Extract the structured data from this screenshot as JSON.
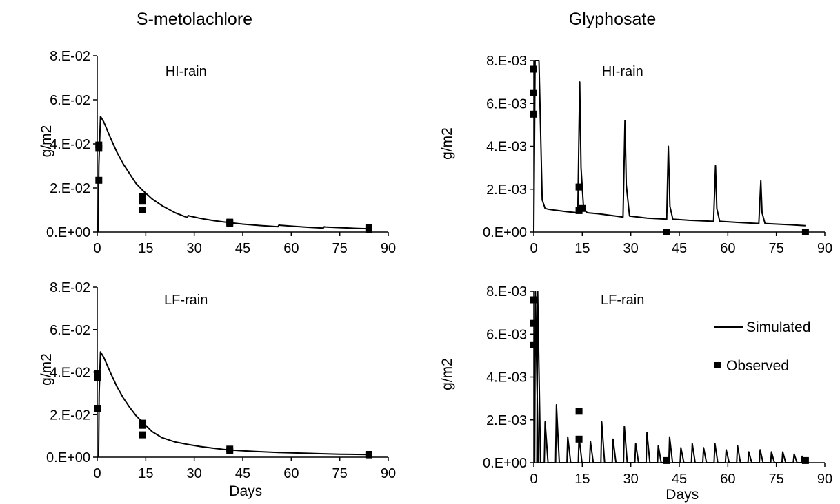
{
  "figure": {
    "col_titles": [
      "S-metolachlore",
      "Glyphosate"
    ],
    "x_label": "Days",
    "legend": {
      "simulated": "Simulated",
      "observed": "Observed"
    }
  },
  "chart_data": [
    {
      "type": "line",
      "column_title": "S-metolachlore",
      "subtitle": "HI-rain",
      "ylabel": "g/m2",
      "xlabel": "",
      "xlim": [
        0,
        90
      ],
      "ylim": [
        0,
        0.08
      ],
      "xticks": [
        "0",
        "15",
        "30",
        "45",
        "60",
        "75",
        "90"
      ],
      "yticks": [
        "0.E+00",
        "2.E-02",
        "4.E-02",
        "6.E-02",
        "8.E-02"
      ],
      "grid": false,
      "simulated": {
        "x": [
          0.3,
          0.5,
          1,
          2,
          4,
          6,
          8,
          10,
          12,
          14,
          17,
          20,
          24,
          27.9,
          28.1,
          28.5,
          32,
          36,
          40,
          45,
          50,
          55.9,
          56.2,
          56.5,
          60,
          65,
          69.9,
          70.2,
          70.5,
          75,
          80,
          84
        ],
        "y": [
          0,
          0.03,
          0.0525,
          0.05,
          0.043,
          0.0365,
          0.031,
          0.0265,
          0.022,
          0.019,
          0.015,
          0.012,
          0.0088,
          0.0066,
          0.0075,
          0.0073,
          0.0062,
          0.0052,
          0.0044,
          0.0036,
          0.003,
          0.0024,
          0.0032,
          0.0031,
          0.0027,
          0.0022,
          0.0018,
          0.0024,
          0.0023,
          0.002,
          0.0017,
          0.0015
        ]
      },
      "observed": {
        "x": [
          0.5,
          0.5,
          0.5,
          14,
          14,
          14,
          41,
          41,
          84,
          84
        ],
        "y": [
          0.0395,
          0.038,
          0.0235,
          0.016,
          0.014,
          0.01,
          0.0045,
          0.0038,
          0.0022,
          0.0012
        ]
      }
    },
    {
      "type": "line",
      "column_title": "Glyphosate",
      "subtitle": "HI-rain",
      "ylabel": "g/m2",
      "xlabel": "",
      "xlim": [
        0,
        90
      ],
      "ylim": [
        0,
        0.008
      ],
      "xticks": [
        "0",
        "15",
        "30",
        "45",
        "60",
        "75",
        "90"
      ],
      "yticks": [
        "0.E+00",
        "2.E-03",
        "4.E-03",
        "6.E-03",
        "8.E-03"
      ],
      "grid": false,
      "simulated": {
        "x": [
          0,
          0.4,
          0.7,
          1.6,
          2.6,
          3.5,
          5,
          10,
          13.6,
          14.2,
          14.6,
          15.4,
          16.5,
          20,
          27.6,
          28.2,
          28.6,
          29.6,
          35,
          41.1,
          41.6,
          42.1,
          43,
          48,
          55.6,
          56.2,
          56.6,
          57.5,
          63,
          69.6,
          70.2,
          70.6,
          71.5,
          78,
          84
        ],
        "y": [
          0,
          0.008,
          0.008,
          0.008,
          0.0015,
          0.0011,
          0.00105,
          0.00095,
          0.0009,
          0.007,
          0.003,
          0.0011,
          0.0009,
          0.00085,
          0.0007,
          0.0052,
          0.0022,
          0.00075,
          0.00065,
          0.0006,
          0.004,
          0.0012,
          0.0006,
          0.00055,
          0.0005,
          0.0031,
          0.0011,
          0.0005,
          0.00045,
          0.0004,
          0.0024,
          0.0009,
          0.0004,
          0.00035,
          0.0003
        ]
      },
      "observed": {
        "x": [
          0,
          0,
          0,
          14,
          14,
          15,
          41,
          84
        ],
        "y": [
          0.0076,
          0.0065,
          0.0055,
          0.0021,
          0.001,
          0.0011,
          0,
          0
        ]
      }
    },
    {
      "type": "line",
      "column_title": "S-metolachlore",
      "subtitle": "LF-rain",
      "ylabel": "g/m2",
      "xlabel": "Days",
      "xlim": [
        0,
        90
      ],
      "ylim": [
        0,
        0.08
      ],
      "xticks": [
        "0",
        "15",
        "30",
        "45",
        "60",
        "75",
        "90"
      ],
      "yticks": [
        "0.E+00",
        "2.E-02",
        "4.E-02",
        "6.E-02",
        "8.E-02"
      ],
      "grid": false,
      "simulated": {
        "x": [
          0.4,
          0.6,
          1,
          2,
          4,
          6,
          8,
          10,
          12,
          14,
          17,
          20,
          24,
          28,
          32,
          36,
          40,
          45,
          50,
          56,
          60,
          65,
          70,
          75,
          80,
          84
        ],
        "y": [
          0,
          0.03,
          0.0495,
          0.047,
          0.04,
          0.0335,
          0.028,
          0.0235,
          0.0195,
          0.0165,
          0.012,
          0.0092,
          0.0072,
          0.006,
          0.005,
          0.0042,
          0.0035,
          0.003,
          0.0026,
          0.0022,
          0.002,
          0.0018,
          0.0016,
          0.0014,
          0.0013,
          0.0012
        ]
      },
      "observed": {
        "x": [
          0,
          0,
          0,
          14,
          14,
          14,
          41,
          41,
          84,
          84
        ],
        "y": [
          0.0395,
          0.0375,
          0.023,
          0.016,
          0.015,
          0.0105,
          0.0038,
          0.003,
          0.0013,
          0.0011
        ]
      }
    },
    {
      "type": "line",
      "column_title": "Glyphosate",
      "subtitle": "LF-rain",
      "ylabel": "g/m2",
      "xlabel": "Days",
      "xlim": [
        0,
        90
      ],
      "ylim": [
        0,
        0.008
      ],
      "xticks": [
        "0",
        "15",
        "30",
        "45",
        "60",
        "75",
        "90"
      ],
      "yticks": [
        "0.E+00",
        "2.E-03",
        "4.E-03",
        "6.E-03",
        "8.E-03"
      ],
      "grid": false,
      "simulated": {
        "peak_x": [
          0.5,
          1.2,
          3.5,
          7,
          10.5,
          14,
          17.5,
          21,
          24.5,
          28,
          31.5,
          35,
          38.5,
          42,
          45.5,
          49,
          52.5,
          56,
          59.5,
          63,
          66.5,
          70,
          73.5,
          77,
          80.5,
          83
        ],
        "peak_y": [
          0.008,
          0.008,
          0.0019,
          0.0027,
          0.0012,
          0.0012,
          0.001,
          0.0019,
          0.0011,
          0.0017,
          0.0009,
          0.0014,
          0.0008,
          0.0012,
          0.0007,
          0.0009,
          0.0007,
          0.0009,
          0.0006,
          0.0008,
          0.0005,
          0.0006,
          0.0005,
          0.0005,
          0.0004,
          0.0003
        ],
        "baseline": 0
      },
      "observed": {
        "x": [
          0,
          0,
          0,
          14,
          14,
          41,
          84
        ],
        "y": [
          0.0076,
          0.0065,
          0.0055,
          0.0024,
          0.0011,
          0.0001,
          0.0001
        ]
      }
    }
  ]
}
